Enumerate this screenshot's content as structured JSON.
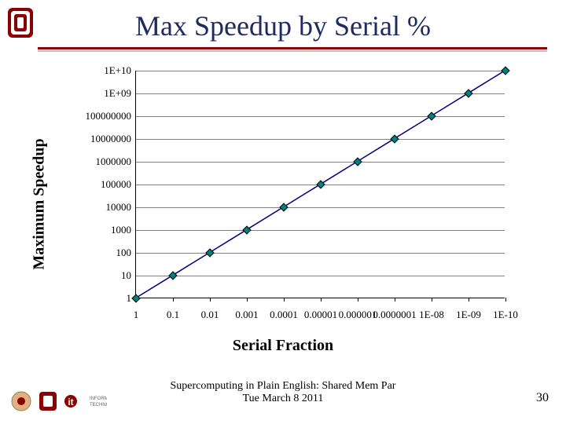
{
  "title": "Max Speedup by Serial %",
  "title_color": "#1f2b60",
  "underline_color": "#8b0000",
  "chart": {
    "type": "line",
    "ylabel": "Maximum Speedup",
    "xlabel": "Serial Fraction",
    "ytick_labels": [
      "1",
      "10",
      "100",
      "1000",
      "10000",
      "100000",
      "1000000",
      "10000000",
      "100000000",
      "1E+09",
      "1E+10"
    ],
    "xtick_labels": [
      "1",
      "0.1",
      "0.01",
      "0.001",
      "0.0001",
      "0.00001",
      "0.000001",
      "0.0000001",
      "1E-08",
      "1E-09",
      "1E-10"
    ],
    "series": {
      "x_index": [
        0,
        1,
        2,
        3,
        4,
        5,
        6,
        7,
        8,
        9,
        10
      ],
      "y_index": [
        0,
        1,
        2,
        3,
        4,
        5,
        6,
        7,
        8,
        9,
        10
      ],
      "line_color": "#000080",
      "line_width": 1.5,
      "marker_shape": "diamond",
      "marker_fill": "#008080",
      "marker_border": "#000000",
      "marker_size_px": 8
    },
    "grid_color": "#808080",
    "grid_on": true,
    "background_color": "#ffffff",
    "label_fontsize_pt": 18,
    "label_fontweight": "bold",
    "tick_fontsize_pt": 12,
    "axis_color": "#000000"
  },
  "footer": {
    "line1": "Supercomputing in Plain English: Shared Mem Par",
    "line2": "Tue March 8 2011"
  },
  "page_number": "30",
  "logo": {
    "ou_red": "#8b0000",
    "ou_text": "OU"
  }
}
